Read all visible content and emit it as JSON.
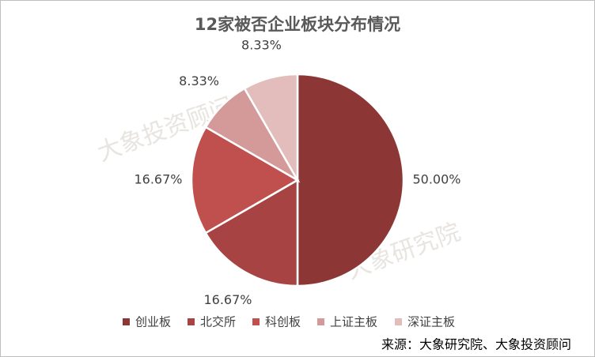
{
  "chart_data": {
    "type": "pie",
    "title": "12家被否企业板块分布情况",
    "categories": [
      "创业板",
      "北交所",
      "科创板",
      "上证主板",
      "深证主板"
    ],
    "values": [
      50.0,
      16.67,
      16.67,
      8.33,
      8.33
    ],
    "value_labels": [
      "50.00%",
      "16.67%",
      "16.67%",
      "8.33%",
      "8.33%"
    ],
    "colors": [
      "#8c3636",
      "#a84343",
      "#c0504d",
      "#d39a99",
      "#e2bdbc"
    ],
    "legend": "bottom",
    "source": "来源：大象研究院、大象投资顾问",
    "watermarks": [
      "大象投资顾问",
      "大象研究院"
    ]
  }
}
